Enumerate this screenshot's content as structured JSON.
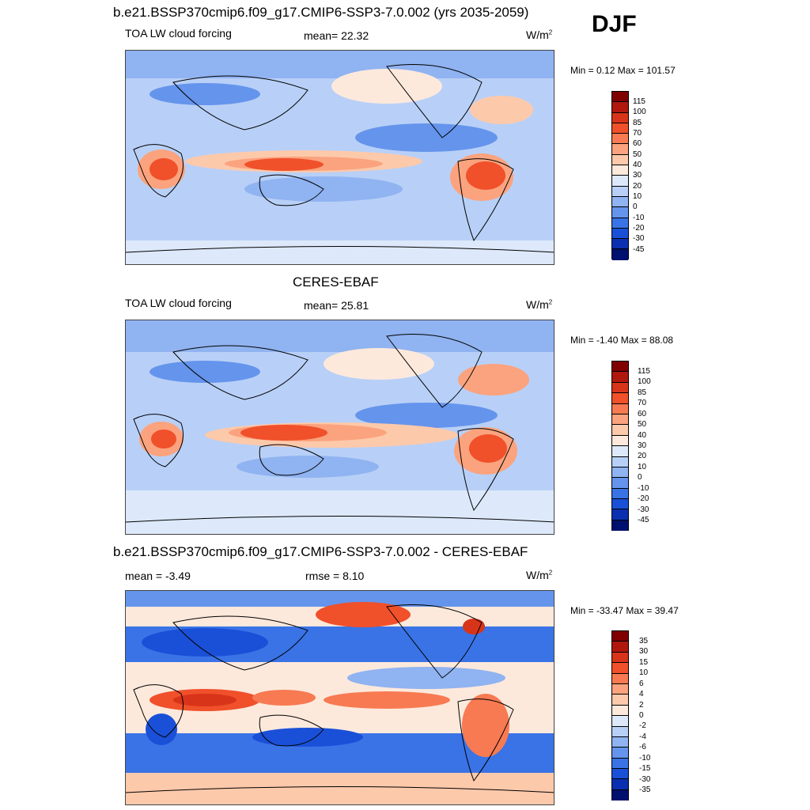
{
  "season": "DJF",
  "panels": [
    {
      "title": "b.e21.BSSP370cmip6.f09_g17.CMIP6-SSP3-7.0.002 (yrs 2035-2059)",
      "left_label": "TOA LW cloud forcing",
      "center_label": "mean=  22.32",
      "units": "W/m",
      "units_sup": "2",
      "minmax": "Min =   0.12 Max = 101.57",
      "colorbar": {
        "labels": [
          "115",
          "100",
          "85",
          "70",
          "60",
          "50",
          "40",
          "30",
          "20",
          "10",
          "0",
          "-10",
          "-20",
          "-30",
          "-45"
        ],
        "colors": [
          "#800000",
          "#b0180e",
          "#d8341a",
          "#f0502a",
          "#f87a52",
          "#fba37e",
          "#fdc9ab",
          "#fde9dc",
          "#dde9fb",
          "#b8d0f7",
          "#90b3f1",
          "#6594ec",
          "#3a73e6",
          "#1a50d8",
          "#0a2fb0",
          "#00106e"
        ]
      },
      "map_style": "model"
    },
    {
      "title": "CERES-EBAF",
      "left_label": "TOA LW cloud forcing",
      "center_label": "mean=  25.81",
      "units": "W/m",
      "units_sup": "2",
      "minmax": "Min =  -1.40 Max =  88.08",
      "colorbar": {
        "labels": [
          "115",
          "100",
          "85",
          "70",
          "60",
          "50",
          "40",
          "30",
          "20",
          "10",
          "0",
          "-10",
          "-20",
          "-30",
          "-45"
        ],
        "colors": [
          "#800000",
          "#b0180e",
          "#d8341a",
          "#f0502a",
          "#f87a52",
          "#fba37e",
          "#fdc9ab",
          "#fde9dc",
          "#dde9fb",
          "#b8d0f7",
          "#90b3f1",
          "#6594ec",
          "#3a73e6",
          "#1a50d8",
          "#0a2fb0",
          "#00106e"
        ]
      },
      "map_style": "obs"
    },
    {
      "title": "b.e21.BSSP370cmip6.f09_g17.CMIP6-SSP3-7.0.002 - CERES-EBAF",
      "left_label": "mean =  -3.49",
      "center_label": "rmse =   8.10",
      "units": "W/m",
      "units_sup": "2",
      "minmax": "Min = -33.47 Max =  39.47",
      "colorbar": {
        "labels": [
          "35",
          "30",
          "15",
          "10",
          "6",
          "4",
          "2",
          "0",
          "-2",
          "-4",
          "-6",
          "-10",
          "-15",
          "-30",
          "-35"
        ],
        "colors": [
          "#800000",
          "#b0180e",
          "#d8341a",
          "#f0502a",
          "#f87a52",
          "#fba37e",
          "#fdc9ab",
          "#fde9dc",
          "#dde9fb",
          "#b8d0f7",
          "#90b3f1",
          "#6594ec",
          "#3a73e6",
          "#1a50d8",
          "#0a2fb0",
          "#00106e"
        ]
      },
      "map_style": "diff"
    }
  ]
}
